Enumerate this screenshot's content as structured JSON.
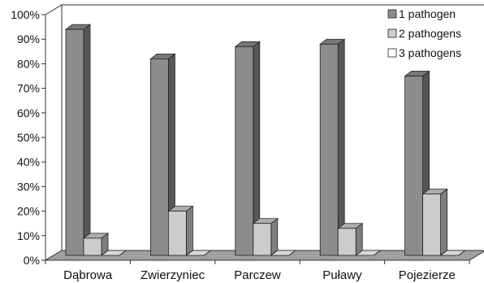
{
  "chart_data": {
    "type": "bar",
    "style": "3d-clustered-column",
    "title": "",
    "xlabel": "",
    "ylabel": "",
    "ylim": [
      0,
      100
    ],
    "y_unit": "%",
    "y_ticks": [
      "0%",
      "10%",
      "20%",
      "30%",
      "40%",
      "50%",
      "60%",
      "70%",
      "80%",
      "90%",
      "100%"
    ],
    "categories": [
      "Dąbrowa",
      "Zwierzyniec",
      "Parczew",
      "Puławy",
      "Pojezierze"
    ],
    "series": [
      {
        "name": "1 pathogen",
        "values": [
          92,
          80,
          85,
          86,
          73
        ],
        "color": "#8c8c8c"
      },
      {
        "name": "2 pathogens",
        "values": [
          7,
          18,
          13,
          11,
          25
        ],
        "color": "#cccccc"
      },
      {
        "name": "3 pathogens",
        "values": [
          0,
          0,
          0,
          0,
          0
        ],
        "color": "#ffffff"
      }
    ],
    "legend": "top-right",
    "grid": false
  }
}
